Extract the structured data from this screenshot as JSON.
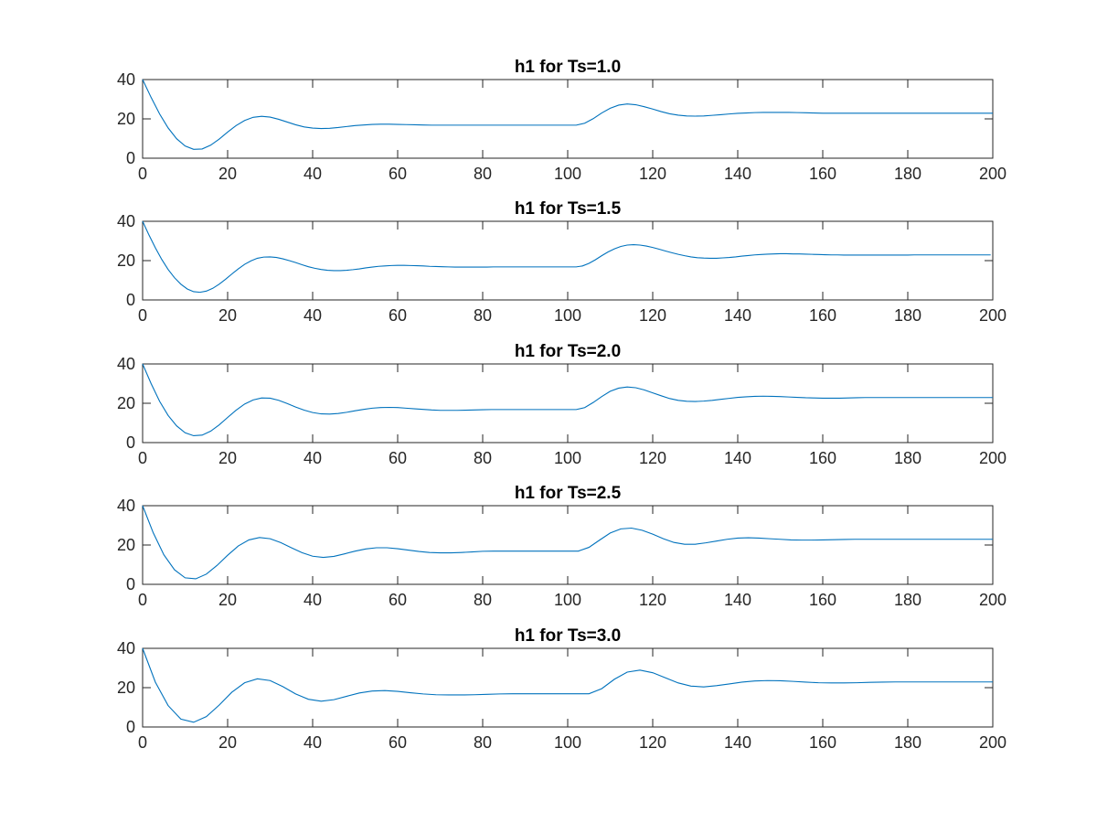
{
  "chart_data": [
    {
      "type": "line",
      "title": "h1 for Ts=1.0",
      "xlabel": "",
      "ylabel": "",
      "xlim": [
        0,
        200
      ],
      "ylim": [
        0,
        40
      ],
      "xticks": [
        0,
        20,
        40,
        60,
        80,
        100,
        120,
        140,
        160,
        180,
        200
      ],
      "yticks": [
        0,
        20,
        40
      ],
      "grid": false,
      "color": "#0072BD",
      "x": [
        0,
        2,
        4,
        6,
        8,
        10,
        12,
        14,
        16,
        18,
        20,
        22,
        24,
        26,
        28,
        30,
        32,
        34,
        36,
        38,
        40,
        42,
        44,
        46,
        48,
        50,
        52,
        54,
        56,
        58,
        60,
        62,
        64,
        66,
        68,
        70,
        72,
        74,
        76,
        78,
        80,
        82,
        84,
        86,
        88,
        90,
        92,
        94,
        96,
        98,
        100,
        102,
        104,
        106,
        108,
        110,
        112,
        114,
        116,
        118,
        120,
        122,
        124,
        126,
        128,
        130,
        132,
        134,
        136,
        138,
        140,
        142,
        144,
        146,
        148,
        150,
        152,
        154,
        156,
        158,
        160,
        162,
        164,
        166,
        168,
        170,
        172,
        174,
        176,
        178,
        180,
        182,
        184,
        186,
        188,
        190,
        192,
        194,
        196,
        198,
        200
      ],
      "y": [
        40.0,
        30.9,
        22.5,
        15.4,
        9.9,
        6.2,
        4.5,
        4.7,
        6.6,
        9.7,
        13.3,
        16.6,
        19.2,
        20.8,
        21.3,
        20.9,
        19.8,
        18.4,
        17.0,
        15.9,
        15.3,
        15.1,
        15.2,
        15.6,
        16.1,
        16.6,
        16.9,
        17.2,
        17.3,
        17.3,
        17.2,
        17.1,
        17.0,
        16.9,
        16.8,
        16.8,
        16.8,
        16.8,
        16.8,
        16.8,
        16.8,
        16.8,
        16.8,
        16.8,
        16.8,
        16.8,
        16.8,
        16.8,
        16.8,
        16.8,
        16.8,
        16.8,
        17.8,
        20.1,
        23.0,
        25.4,
        27.0,
        27.6,
        27.2,
        26.2,
        25.0,
        23.7,
        22.6,
        21.9,
        21.5,
        21.4,
        21.5,
        21.8,
        22.1,
        22.5,
        22.8,
        23.0,
        23.2,
        23.3,
        23.3,
        23.3,
        23.3,
        23.2,
        23.1,
        23.0,
        22.9,
        22.9,
        22.9,
        22.9,
        22.9,
        22.9,
        22.9,
        22.9,
        22.9,
        22.9,
        22.9,
        22.9,
        22.9,
        22.9,
        22.9,
        22.9,
        22.9,
        22.9,
        22.9,
        22.9,
        22.9
      ]
    },
    {
      "type": "line",
      "title": "h1 for Ts=1.5",
      "xlabel": "",
      "ylabel": "",
      "xlim": [
        0,
        200
      ],
      "ylim": [
        0,
        40
      ],
      "xticks": [
        0,
        20,
        40,
        60,
        80,
        100,
        120,
        140,
        160,
        180,
        200
      ],
      "yticks": [
        0,
        20,
        40
      ],
      "grid": false,
      "color": "#0072BD",
      "x": [
        0,
        1.5,
        3,
        4.5,
        6,
        7.5,
        9,
        10.5,
        12,
        13.5,
        15,
        16.5,
        18,
        19.5,
        21,
        22.5,
        24,
        25.5,
        27,
        28.5,
        30,
        31.5,
        33,
        34.5,
        36,
        37.5,
        39,
        40.5,
        42,
        43.5,
        45,
        46.5,
        48,
        49.5,
        51,
        52.5,
        54,
        55.5,
        57,
        58.5,
        60,
        61.5,
        63,
        64.5,
        66,
        67.5,
        69,
        70.5,
        72,
        73.5,
        75,
        76.5,
        78,
        79.5,
        81,
        82.5,
        84,
        85.5,
        87,
        88.5,
        90,
        91.5,
        93,
        94.5,
        96,
        97.5,
        99,
        100.5,
        102,
        103.5,
        105,
        106.5,
        108,
        109.5,
        111,
        112.5,
        114,
        115.5,
        117,
        118.5,
        120,
        121.5,
        123,
        124.5,
        126,
        127.5,
        129,
        130.5,
        132,
        133.5,
        135,
        136.5,
        138,
        139.5,
        141,
        142.5,
        144,
        145.5,
        147,
        148.5,
        150,
        151.5,
        153,
        154.5,
        156,
        157.5,
        159,
        160.5,
        162,
        163.5,
        165,
        166.5,
        168,
        169.5,
        171,
        172.5,
        174,
        175.5,
        177,
        178.5,
        180,
        181.5,
        183,
        184.5,
        186,
        187.5,
        189,
        190.5,
        192,
        193.5,
        195,
        196.5,
        198,
        199.5
      ],
      "y": [
        40.0,
        33.0,
        26.5,
        20.6,
        15.5,
        11.3,
        8.0,
        5.6,
        4.2,
        3.9,
        4.5,
        5.9,
        8.0,
        10.5,
        13.2,
        15.8,
        18.1,
        19.9,
        21.2,
        21.8,
        21.9,
        21.6,
        20.9,
        20.0,
        19.0,
        17.9,
        16.9,
        16.1,
        15.5,
        15.1,
        14.9,
        14.9,
        15.1,
        15.4,
        15.8,
        16.3,
        16.7,
        17.1,
        17.3,
        17.5,
        17.6,
        17.6,
        17.5,
        17.4,
        17.3,
        17.1,
        17.0,
        16.9,
        16.8,
        16.7,
        16.7,
        16.7,
        16.7,
        16.7,
        16.7,
        16.8,
        16.8,
        16.8,
        16.8,
        16.8,
        16.8,
        16.8,
        16.8,
        16.8,
        16.8,
        16.8,
        16.8,
        16.8,
        16.8,
        17.3,
        18.6,
        20.4,
        22.5,
        24.4,
        26.0,
        27.2,
        27.9,
        28.1,
        27.9,
        27.4,
        26.7,
        25.8,
        24.9,
        24.0,
        23.2,
        22.5,
        21.9,
        21.5,
        21.3,
        21.2,
        21.2,
        21.4,
        21.6,
        21.9,
        22.3,
        22.6,
        22.9,
        23.1,
        23.3,
        23.4,
        23.5,
        23.5,
        23.4,
        23.4,
        23.3,
        23.2,
        23.1,
        23.0,
        22.9,
        22.9,
        22.8,
        22.8,
        22.8,
        22.8,
        22.8,
        22.8,
        22.8,
        22.8,
        22.8,
        22.8,
        22.8,
        22.9,
        22.9,
        22.9,
        22.9,
        22.9,
        22.9,
        22.9,
        22.9,
        22.9,
        22.9,
        22.9,
        22.9,
        22.9
      ]
    },
    {
      "type": "line",
      "title": "h1 for Ts=2.0",
      "xlabel": "",
      "ylabel": "",
      "xlim": [
        0,
        200
      ],
      "ylim": [
        0,
        40
      ],
      "xticks": [
        0,
        20,
        40,
        60,
        80,
        100,
        120,
        140,
        160,
        180,
        200
      ],
      "yticks": [
        0,
        20,
        40
      ],
      "grid": false,
      "color": "#0072BD",
      "x": [
        0,
        2,
        4,
        6,
        8,
        10,
        12,
        14,
        16,
        18,
        20,
        22,
        24,
        26,
        28,
        30,
        32,
        34,
        36,
        38,
        40,
        42,
        44,
        46,
        48,
        50,
        52,
        54,
        56,
        58,
        60,
        62,
        64,
        66,
        68,
        70,
        72,
        74,
        76,
        78,
        80,
        82,
        84,
        86,
        88,
        90,
        92,
        94,
        96,
        98,
        100,
        102,
        104,
        106,
        108,
        110,
        112,
        114,
        116,
        118,
        120,
        122,
        124,
        126,
        128,
        130,
        132,
        134,
        136,
        138,
        140,
        142,
        144,
        146,
        148,
        150,
        152,
        154,
        156,
        158,
        160,
        162,
        164,
        166,
        168,
        170,
        172,
        174,
        176,
        178,
        180,
        182,
        184,
        186,
        188,
        190,
        192,
        194,
        196,
        198,
        200
      ],
      "y": [
        40.0,
        30.0,
        21.0,
        13.8,
        8.5,
        5.0,
        3.5,
        3.8,
        5.8,
        9.0,
        12.8,
        16.5,
        19.6,
        21.7,
        22.7,
        22.6,
        21.5,
        19.9,
        18.1,
        16.5,
        15.3,
        14.6,
        14.5,
        14.8,
        15.4,
        16.2,
        16.9,
        17.5,
        17.8,
        17.9,
        17.8,
        17.5,
        17.2,
        16.9,
        16.6,
        16.4,
        16.4,
        16.4,
        16.5,
        16.6,
        16.7,
        16.8,
        16.8,
        16.8,
        16.8,
        16.8,
        16.8,
        16.8,
        16.8,
        16.8,
        16.8,
        16.8,
        17.8,
        20.4,
        23.4,
        26.1,
        27.7,
        28.3,
        27.9,
        26.8,
        25.3,
        23.8,
        22.4,
        21.5,
        21.0,
        20.9,
        21.1,
        21.5,
        22.0,
        22.5,
        23.0,
        23.3,
        23.5,
        23.6,
        23.5,
        23.4,
        23.2,
        23.0,
        22.8,
        22.7,
        22.6,
        22.6,
        22.6,
        22.7,
        22.8,
        22.9,
        22.9,
        22.9,
        22.9,
        22.9,
        22.9,
        22.9,
        22.9,
        22.9,
        22.9,
        22.9,
        22.9,
        22.9,
        22.9,
        22.9,
        22.9
      ]
    },
    {
      "type": "line",
      "title": "h1 for Ts=2.5",
      "xlabel": "",
      "ylabel": "",
      "xlim": [
        0,
        200
      ],
      "ylim": [
        0,
        40
      ],
      "xticks": [
        0,
        20,
        40,
        60,
        80,
        100,
        120,
        140,
        160,
        180,
        200
      ],
      "yticks": [
        0,
        20,
        40
      ],
      "grid": false,
      "color": "#0072BD",
      "x": [
        0,
        2.5,
        5,
        7.5,
        10,
        12.5,
        15,
        17.5,
        20,
        22.5,
        25,
        27.5,
        30,
        32.5,
        35,
        37.5,
        40,
        42.5,
        45,
        47.5,
        50,
        52.5,
        55,
        57.5,
        60,
        62.5,
        65,
        67.5,
        70,
        72.5,
        75,
        77.5,
        80,
        82.5,
        85,
        87.5,
        90,
        92.5,
        95,
        97.5,
        100,
        102.5,
        105,
        107.5,
        110,
        112.5,
        115,
        117.5,
        120,
        122.5,
        125,
        127.5,
        130,
        132.5,
        135,
        137.5,
        140,
        142.5,
        145,
        147.5,
        150,
        152.5,
        155,
        157.5,
        160,
        162.5,
        165,
        167.5,
        170,
        172.5,
        175,
        177.5,
        180,
        182.5,
        185,
        187.5,
        190,
        192.5,
        195,
        197.5,
        200
      ],
      "y": [
        40.0,
        26.2,
        15.0,
        7.4,
        3.3,
        2.8,
        5.2,
        9.6,
        14.8,
        19.5,
        22.6,
        23.8,
        23.2,
        21.2,
        18.6,
        16.1,
        14.3,
        13.7,
        14.2,
        15.5,
        16.9,
        18.0,
        18.6,
        18.6,
        18.1,
        17.4,
        16.7,
        16.2,
        16.0,
        16.0,
        16.2,
        16.5,
        16.8,
        16.9,
        16.9,
        16.9,
        16.9,
        16.9,
        16.9,
        16.9,
        16.9,
        16.9,
        18.8,
        22.5,
        26.1,
        28.2,
        28.6,
        27.5,
        25.5,
        23.2,
        21.3,
        20.4,
        20.4,
        21.1,
        22.0,
        22.9,
        23.5,
        23.7,
        23.5,
        23.2,
        22.9,
        22.6,
        22.5,
        22.5,
        22.6,
        22.7,
        22.8,
        22.9,
        22.9,
        22.9,
        22.9,
        22.9,
        22.9,
        22.9,
        22.9,
        22.9,
        22.9,
        22.9,
        22.9,
        22.9,
        22.9
      ]
    },
    {
      "type": "line",
      "title": "h1 for Ts=3.0",
      "xlabel": "",
      "ylabel": "",
      "xlim": [
        0,
        200
      ],
      "ylim": [
        0,
        40
      ],
      "xticks": [
        0,
        20,
        40,
        60,
        80,
        100,
        120,
        140,
        160,
        180,
        200
      ],
      "yticks": [
        0,
        20,
        40
      ],
      "grid": false,
      "color": "#0072BD",
      "x": [
        0,
        3,
        6,
        9,
        12,
        15,
        18,
        21,
        24,
        27,
        30,
        33,
        36,
        39,
        42,
        45,
        48,
        51,
        54,
        57,
        60,
        63,
        66,
        69,
        72,
        75,
        78,
        81,
        84,
        87,
        90,
        93,
        96,
        99,
        102,
        105,
        108,
        111,
        114,
        117,
        120,
        123,
        126,
        129,
        132,
        135,
        138,
        141,
        144,
        147,
        150,
        153,
        156,
        159,
        162,
        165,
        168,
        171,
        174,
        177,
        180,
        183,
        186,
        189,
        192,
        195,
        198,
        200
      ],
      "y": [
        40.0,
        22.8,
        10.9,
        4.0,
        2.4,
        5.3,
        11.1,
        17.7,
        22.5,
        24.5,
        23.6,
        20.5,
        16.8,
        14.1,
        13.1,
        13.9,
        15.6,
        17.3,
        18.3,
        18.5,
        18.1,
        17.4,
        16.8,
        16.4,
        16.3,
        16.3,
        16.4,
        16.6,
        16.8,
        16.9,
        16.9,
        16.9,
        16.9,
        16.9,
        16.9,
        16.9,
        19.5,
        24.3,
        27.9,
        28.9,
        27.6,
        25.0,
        22.4,
        20.8,
        20.4,
        21.0,
        21.9,
        22.8,
        23.4,
        23.6,
        23.5,
        23.2,
        22.8,
        22.5,
        22.4,
        22.4,
        22.5,
        22.7,
        22.8,
        22.9,
        22.9,
        22.9,
        22.9,
        22.9,
        22.9,
        22.9,
        22.9,
        22.9
      ]
    }
  ]
}
